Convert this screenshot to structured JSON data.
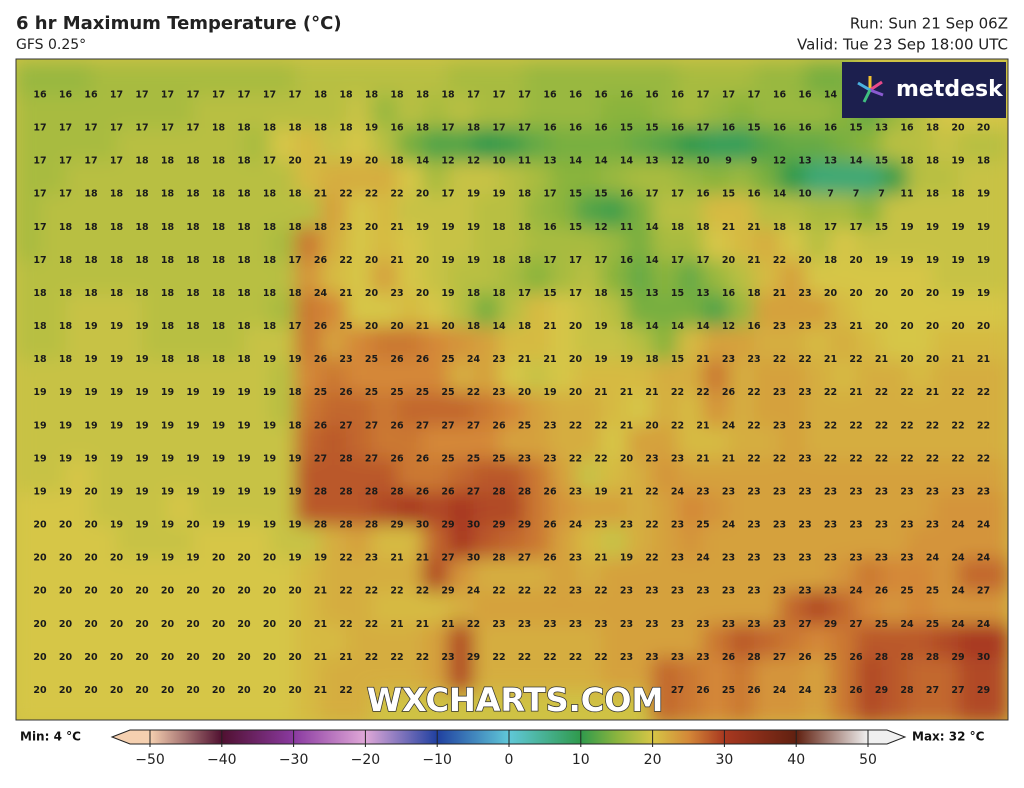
{
  "header": {
    "title": "6 hr Maximum Temperature (°C)",
    "model": "GFS 0.25°",
    "run": "Run: Sun 21 Sep 06Z",
    "valid": "Valid: Tue 23 Sep 18:00 UTC"
  },
  "logo": "metdesk",
  "watermark": "WXCHARTS.COM",
  "grid": [
    [
      16,
      16,
      16,
      17,
      17,
      17,
      17,
      17,
      17,
      17,
      17,
      18,
      18,
      18,
      18,
      18,
      18,
      17,
      17,
      17,
      16,
      16,
      16,
      16,
      16,
      16,
      17,
      17,
      17,
      16,
      16,
      14,
      null,
      null,
      null,
      null,
      null,
      null
    ],
    [
      17,
      17,
      17,
      17,
      17,
      17,
      17,
      18,
      18,
      18,
      18,
      18,
      18,
      19,
      16,
      18,
      17,
      18,
      17,
      17,
      16,
      16,
      16,
      15,
      15,
      16,
      17,
      16,
      15,
      16,
      16,
      16,
      15,
      13,
      16,
      18,
      20,
      20
    ],
    [
      17,
      17,
      17,
      17,
      18,
      18,
      18,
      18,
      18,
      17,
      20,
      21,
      19,
      20,
      18,
      14,
      12,
      12,
      10,
      11,
      13,
      14,
      14,
      14,
      13,
      12,
      10,
      9,
      9,
      12,
      13,
      13,
      14,
      15,
      18,
      18,
      19,
      18
    ],
    [
      17,
      17,
      18,
      18,
      18,
      18,
      18,
      18,
      18,
      18,
      18,
      21,
      22,
      22,
      22,
      20,
      17,
      19,
      19,
      18,
      17,
      15,
      15,
      16,
      17,
      17,
      16,
      15,
      16,
      14,
      10,
      7,
      7,
      7,
      11,
      18,
      18,
      19
    ],
    [
      17,
      18,
      18,
      18,
      18,
      18,
      18,
      18,
      18,
      18,
      18,
      18,
      23,
      20,
      21,
      19,
      19,
      19,
      18,
      18,
      16,
      15,
      12,
      11,
      14,
      18,
      18,
      21,
      21,
      18,
      18,
      17,
      17,
      15,
      19,
      19,
      19,
      19
    ],
    [
      17,
      18,
      18,
      18,
      18,
      18,
      18,
      18,
      18,
      18,
      17,
      26,
      22,
      20,
      21,
      20,
      19,
      19,
      18,
      18,
      17,
      17,
      17,
      16,
      14,
      17,
      17,
      20,
      21,
      22,
      20,
      18,
      20,
      19,
      19,
      19,
      19,
      19
    ],
    [
      18,
      18,
      18,
      18,
      18,
      18,
      18,
      18,
      18,
      18,
      18,
      24,
      21,
      20,
      23,
      20,
      19,
      18,
      18,
      17,
      15,
      17,
      18,
      15,
      13,
      15,
      13,
      16,
      18,
      21,
      23,
      20,
      20,
      20,
      20,
      20,
      19,
      19
    ],
    [
      18,
      18,
      19,
      19,
      19,
      18,
      18,
      18,
      18,
      18,
      17,
      26,
      25,
      20,
      20,
      21,
      20,
      18,
      14,
      18,
      21,
      20,
      19,
      18,
      14,
      14,
      14,
      12,
      16,
      23,
      23,
      23,
      21,
      20,
      20,
      20,
      20,
      20
    ],
    [
      18,
      18,
      19,
      19,
      19,
      18,
      18,
      18,
      18,
      19,
      19,
      26,
      23,
      25,
      26,
      26,
      25,
      24,
      23,
      21,
      21,
      20,
      19,
      19,
      18,
      15,
      21,
      23,
      23,
      22,
      22,
      21,
      22,
      21,
      20,
      20,
      21,
      21
    ],
    [
      19,
      19,
      19,
      19,
      19,
      19,
      19,
      19,
      19,
      19,
      18,
      25,
      26,
      25,
      25,
      25,
      25,
      22,
      23,
      20,
      19,
      20,
      21,
      21,
      21,
      22,
      22,
      26,
      22,
      23,
      23,
      22,
      21,
      22,
      22,
      21,
      22,
      22
    ],
    [
      19,
      19,
      19,
      19,
      19,
      19,
      19,
      19,
      19,
      19,
      18,
      26,
      27,
      27,
      26,
      27,
      27,
      27,
      26,
      25,
      23,
      22,
      22,
      21,
      20,
      22,
      21,
      24,
      22,
      23,
      23,
      22,
      22,
      22,
      22,
      22,
      22,
      22
    ],
    [
      19,
      19,
      19,
      19,
      19,
      19,
      19,
      19,
      19,
      19,
      19,
      27,
      28,
      27,
      26,
      26,
      25,
      25,
      25,
      23,
      23,
      22,
      22,
      20,
      23,
      23,
      21,
      21,
      22,
      22,
      23,
      22,
      22,
      22,
      22,
      22,
      22,
      22
    ],
    [
      19,
      19,
      20,
      19,
      19,
      19,
      19,
      19,
      19,
      19,
      19,
      28,
      28,
      28,
      28,
      26,
      26,
      27,
      28,
      28,
      26,
      23,
      19,
      21,
      22,
      24,
      23,
      23,
      23,
      23,
      23,
      23,
      23,
      23,
      23,
      23,
      23,
      23
    ],
    [
      20,
      20,
      20,
      19,
      19,
      19,
      20,
      19,
      19,
      19,
      19,
      28,
      28,
      28,
      29,
      30,
      29,
      30,
      29,
      29,
      26,
      24,
      23,
      23,
      22,
      23,
      25,
      24,
      23,
      23,
      23,
      23,
      23,
      23,
      23,
      23,
      24,
      24
    ],
    [
      20,
      20,
      20,
      20,
      19,
      19,
      19,
      20,
      20,
      20,
      19,
      19,
      22,
      23,
      21,
      21,
      27,
      30,
      28,
      27,
      26,
      23,
      21,
      19,
      22,
      23,
      24,
      23,
      23,
      23,
      23,
      23,
      23,
      23,
      23,
      24,
      24,
      24
    ],
    [
      20,
      20,
      20,
      20,
      20,
      20,
      20,
      20,
      20,
      20,
      20,
      21,
      22,
      22,
      22,
      22,
      29,
      24,
      22,
      22,
      22,
      23,
      22,
      23,
      23,
      23,
      23,
      23,
      23,
      23,
      23,
      23,
      24,
      26,
      25,
      25,
      24,
      27
    ],
    [
      20,
      20,
      20,
      20,
      20,
      20,
      20,
      20,
      20,
      20,
      20,
      21,
      22,
      22,
      21,
      21,
      21,
      22,
      23,
      23,
      23,
      23,
      23,
      23,
      23,
      23,
      23,
      23,
      23,
      23,
      27,
      29,
      27,
      25,
      24,
      25,
      24,
      24
    ],
    [
      20,
      20,
      20,
      20,
      20,
      20,
      20,
      20,
      20,
      20,
      20,
      21,
      21,
      22,
      22,
      22,
      23,
      29,
      22,
      22,
      22,
      22,
      22,
      23,
      23,
      23,
      23,
      26,
      28,
      27,
      26,
      25,
      26,
      28,
      28,
      28,
      29,
      30
    ],
    [
      20,
      20,
      20,
      20,
      20,
      20,
      20,
      20,
      20,
      20,
      20,
      21,
      22,
      null,
      null,
      null,
      null,
      null,
      null,
      null,
      null,
      null,
      null,
      null,
      null,
      27,
      26,
      25,
      26,
      24,
      24,
      23,
      26,
      29,
      28,
      27,
      27,
      29
    ]
  ],
  "colorbar": {
    "min_label": "Min: 4 °C",
    "max_label": "Max: 32 °C",
    "ticks": [
      {
        "value": -50,
        "label": "−50"
      },
      {
        "value": -40,
        "label": "−40"
      },
      {
        "value": -30,
        "label": "−30"
      },
      {
        "value": -20,
        "label": "−20"
      },
      {
        "value": -10,
        "label": "−10"
      },
      0,
      10,
      20,
      30,
      40,
      50
    ],
    "colorscale": [
      [
        -50,
        "#f5d0b0"
      ],
      [
        -40,
        "#501030"
      ],
      [
        -30,
        "#8a3aa0"
      ],
      [
        -20,
        "#e0a8d8"
      ],
      [
        -10,
        "#2040a0"
      ],
      [
        0,
        "#60c8d8"
      ],
      [
        10,
        "#2f9a4c"
      ],
      [
        15,
        "#8ab43e"
      ],
      [
        20,
        "#d6c646"
      ],
      [
        25,
        "#d48838"
      ],
      [
        30,
        "#a83820"
      ],
      [
        40,
        "#602010"
      ],
      [
        50,
        "#f0f0f0"
      ]
    ]
  }
}
